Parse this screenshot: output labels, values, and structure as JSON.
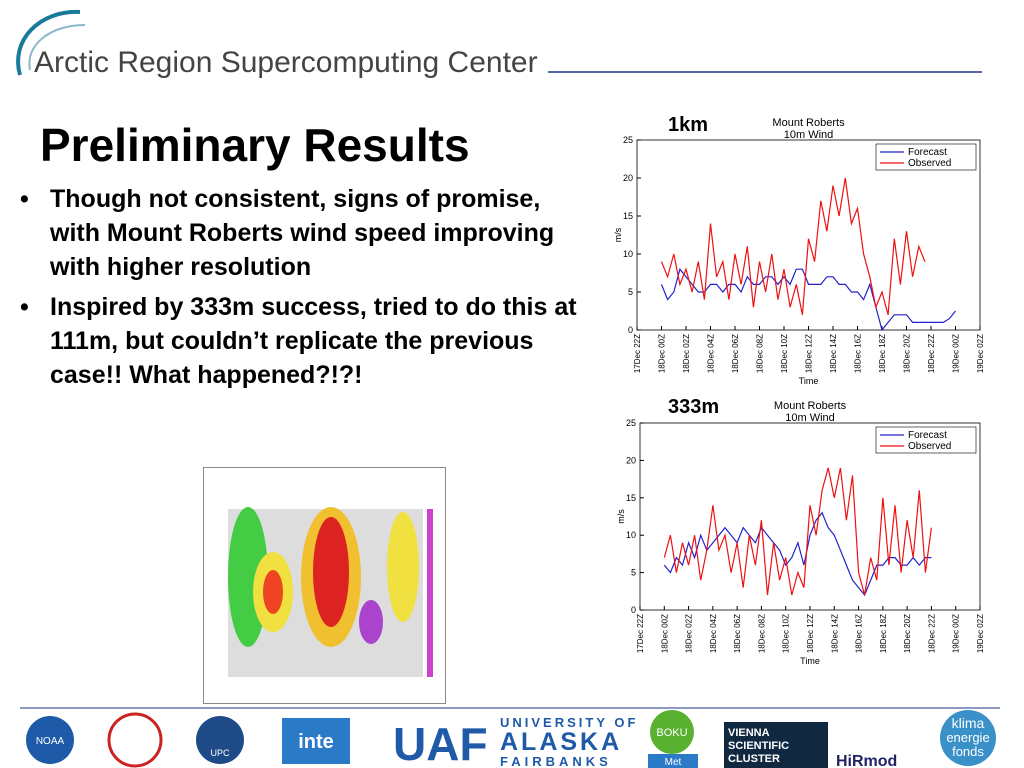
{
  "header": {
    "title": "Arctic Region Supercomputing Center"
  },
  "slide": {
    "title": "Preliminary Results",
    "bullets": [
      "Though not consistent, signs of promise, with Mount Roberts wind speed improving with higher resolution",
      "Inspired by 333m success, tried to do this at 111m, but couldn’t replicate the previous case!! What happened?!?!"
    ]
  },
  "footer": {
    "logos": [
      "NOAA",
      "UPC",
      "inte",
      "UAF",
      "UNIVERSITY OF",
      "ALASKA",
      "FAIRBANKS",
      "BOKU",
      "Met",
      "VIENNA",
      "SCIENTIFIC",
      "CLUSTER",
      "HiRmod",
      "klima",
      "energie",
      "fonds"
    ]
  },
  "chart_data": [
    {
      "type": "line",
      "label": "1km",
      "title": [
        "Mount Roberts",
        "10m Wind"
      ],
      "xlabel": "Time",
      "ylabel": "m/s",
      "xlim": [
        0,
        28
      ],
      "ylim": [
        0,
        25
      ],
      "yticks": [
        0,
        5,
        10,
        15,
        20,
        25
      ],
      "xticks": [
        {
          "value": 0,
          "label": "17Dec 22Z"
        },
        {
          "value": 2,
          "label": "18Dec 00Z"
        },
        {
          "value": 4,
          "label": "18Dec 02Z"
        },
        {
          "value": 6,
          "label": "18Dec 04Z"
        },
        {
          "value": 8,
          "label": "18Dec 06Z"
        },
        {
          "value": 10,
          "label": "18Dec 08Z"
        },
        {
          "value": 12,
          "label": "18Dec 10Z"
        },
        {
          "value": 14,
          "label": "18Dec 12Z"
        },
        {
          "value": 16,
          "label": "18Dec 14Z"
        },
        {
          "value": 18,
          "label": "18Dec 16Z"
        },
        {
          "value": 20,
          "label": "18Dec 18Z"
        },
        {
          "value": 22,
          "label": "18Dec 20Z"
        },
        {
          "value": 24,
          "label": "18Dec 22Z"
        },
        {
          "value": 26,
          "label": "19Dec 00Z"
        },
        {
          "value": 28,
          "label": "19Dec 02Z"
        }
      ],
      "legend": "upper right",
      "x": [
        2,
        2.5,
        3,
        3.5,
        4,
        4.5,
        5,
        5.5,
        6,
        6.5,
        7,
        7.5,
        8,
        8.5,
        9,
        9.5,
        10,
        10.5,
        11,
        11.5,
        12,
        12.5,
        13,
        13.5,
        14,
        14.5,
        15,
        15.5,
        16,
        16.5,
        17,
        17.5,
        18,
        18.5,
        19,
        19.5,
        20,
        20.5,
        21,
        21.5,
        22,
        22.5,
        23,
        23.5,
        24,
        24.5,
        25,
        25.5,
        26
      ],
      "series": [
        {
          "name": "Forecast",
          "color": "#2222cc",
          "values": [
            6,
            4,
            5,
            8,
            7,
            6,
            5,
            5,
            6,
            6,
            5,
            6,
            6,
            5,
            7,
            6,
            6,
            7,
            7,
            6,
            7,
            6,
            8,
            8,
            6,
            6,
            6,
            7,
            7,
            6,
            6,
            5,
            5,
            4,
            6,
            3,
            0,
            1,
            2,
            2,
            2,
            1,
            1,
            1,
            1,
            1,
            1,
            1.5,
            2.5
          ]
        },
        {
          "name": "Observed",
          "color": "#ee1111",
          "values": [
            9,
            7,
            10,
            6,
            8,
            5,
            9,
            4,
            14,
            7,
            9,
            4,
            10,
            6,
            11,
            3,
            9,
            5,
            10,
            4,
            8,
            3,
            6,
            2,
            12,
            9,
            17,
            13,
            19,
            15,
            20,
            14,
            16,
            10,
            7,
            3,
            5,
            2,
            12,
            6,
            13,
            7,
            11,
            9,
            null,
            null,
            null,
            null,
            null
          ]
        }
      ]
    },
    {
      "type": "line",
      "label": "333m",
      "title": [
        "Mount Roberts",
        "10m Wind"
      ],
      "xlabel": "Time",
      "ylabel": "m/s",
      "xlim": [
        0,
        28
      ],
      "ylim": [
        0,
        25
      ],
      "yticks": [
        0,
        5,
        10,
        15,
        20,
        25
      ],
      "xticks": [
        {
          "value": 0,
          "label": "17Dec 22Z"
        },
        {
          "value": 2,
          "label": "18Dec 00Z"
        },
        {
          "value": 4,
          "label": "18Dec 02Z"
        },
        {
          "value": 6,
          "label": "18Dec 04Z"
        },
        {
          "value": 8,
          "label": "18Dec 06Z"
        },
        {
          "value": 10,
          "label": "18Dec 08Z"
        },
        {
          "value": 12,
          "label": "18Dec 10Z"
        },
        {
          "value": 14,
          "label": "18Dec 12Z"
        },
        {
          "value": 16,
          "label": "18Dec 14Z"
        },
        {
          "value": 18,
          "label": "18Dec 16Z"
        },
        {
          "value": 20,
          "label": "18Dec 18Z"
        },
        {
          "value": 22,
          "label": "18Dec 20Z"
        },
        {
          "value": 24,
          "label": "18Dec 22Z"
        },
        {
          "value": 26,
          "label": "19Dec 00Z"
        },
        {
          "value": 28,
          "label": "19Dec 02Z"
        }
      ],
      "legend": "upper right",
      "x": [
        2,
        2.5,
        3,
        3.5,
        4,
        4.5,
        5,
        5.5,
        6,
        6.5,
        7,
        7.5,
        8,
        8.5,
        9,
        9.5,
        10,
        10.5,
        11,
        11.5,
        12,
        12.5,
        13,
        13.5,
        14,
        14.5,
        15,
        15.5,
        16,
        16.5,
        17,
        17.5,
        18,
        18.5,
        19,
        19.5,
        20,
        20.5,
        21,
        21.5,
        22,
        22.5,
        23,
        23.5,
        24,
        24.5,
        25,
        25.5,
        26
      ],
      "series": [
        {
          "name": "Forecast",
          "color": "#2222cc",
          "values": [
            6,
            5,
            7,
            6,
            9,
            7,
            10,
            8,
            9,
            10,
            11,
            10,
            9,
            11,
            10,
            9,
            11,
            10,
            9,
            8,
            6,
            7,
            9,
            6,
            10,
            12,
            13,
            11,
            10,
            8,
            6,
            4,
            3,
            2,
            4,
            6,
            6,
            7,
            7,
            6,
            6,
            7,
            6,
            7,
            7,
            null,
            null,
            null,
            null
          ]
        },
        {
          "name": "Observed",
          "color": "#ee1111",
          "values": [
            7,
            10,
            5,
            9,
            6,
            10,
            4,
            8,
            14,
            8,
            10,
            5,
            9,
            3,
            10,
            6,
            12,
            2,
            9,
            4,
            7,
            2,
            5,
            3,
            14,
            10,
            16,
            19,
            15,
            19,
            12,
            18,
            5,
            2,
            7,
            4,
            15,
            6,
            14,
            5,
            12,
            7,
            16,
            5,
            11,
            null,
            null,
            null,
            null
          ]
        }
      ]
    }
  ]
}
